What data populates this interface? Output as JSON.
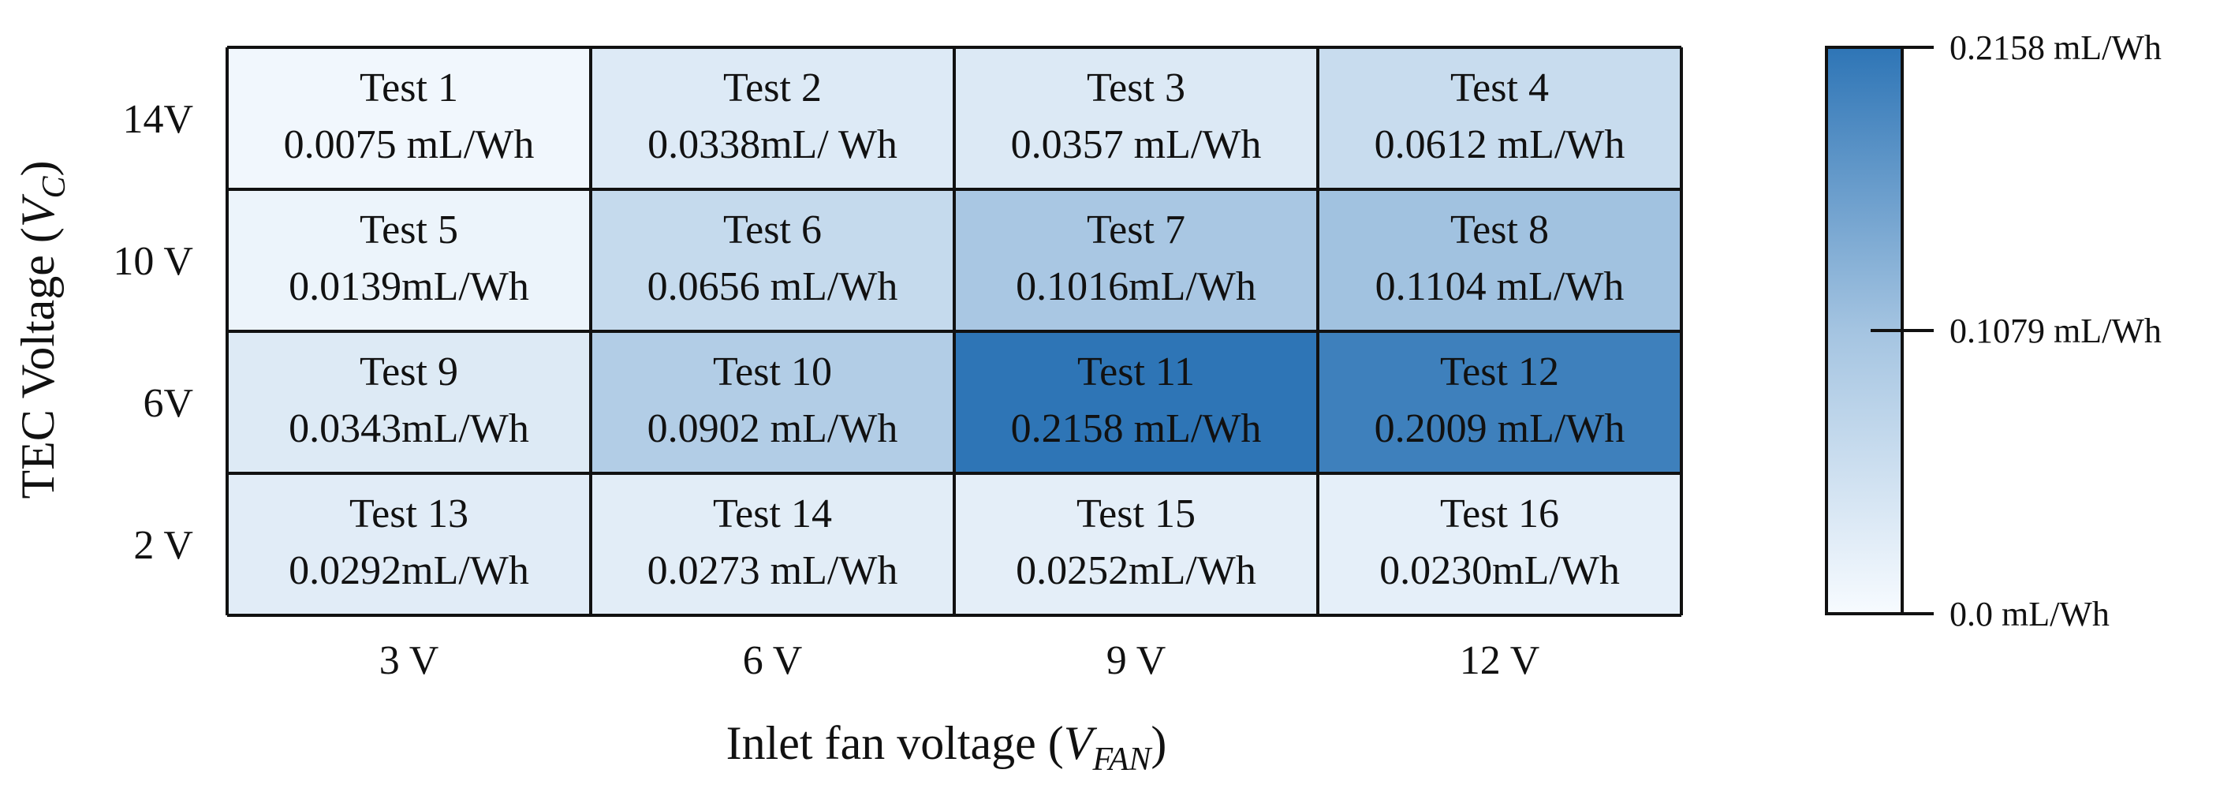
{
  "chart_data": {
    "type": "heatmap",
    "title": "",
    "xlabel": {
      "text": "Inlet fan voltage (",
      "var": "V",
      "sub": "FAN",
      "close": ")"
    },
    "ylabel": {
      "text": "TEC Voltage (",
      "var": "V",
      "sub": "C",
      "close": ")"
    },
    "x_categories": [
      "3 V",
      "6 V",
      "9 V",
      "12 V"
    ],
    "y_categories": [
      "14V",
      "10 V",
      "6V",
      "2 V"
    ],
    "cells": [
      [
        {
          "test": "Test 1",
          "label": "0.0075 mL/Wh",
          "value": 0.0075
        },
        {
          "test": "Test 2",
          "label": "0.0338mL/ Wh",
          "value": 0.0338
        },
        {
          "test": "Test 3",
          "label": "0.0357 mL/Wh",
          "value": 0.0357
        },
        {
          "test": "Test 4",
          "label": "0.0612 mL/Wh",
          "value": 0.0612
        }
      ],
      [
        {
          "test": "Test 5",
          "label": "0.0139mL/Wh",
          "value": 0.0139
        },
        {
          "test": "Test 6",
          "label": "0.0656 mL/Wh",
          "value": 0.0656
        },
        {
          "test": "Test 7",
          "label": "0.1016mL/Wh",
          "value": 0.1016
        },
        {
          "test": "Test 8",
          "label": "0.1104 mL/Wh",
          "value": 0.1104
        }
      ],
      [
        {
          "test": "Test 9",
          "label": "0.0343mL/Wh",
          "value": 0.0343
        },
        {
          "test": "Test 10",
          "label": "0.0902 mL/Wh",
          "value": 0.0902
        },
        {
          "test": "Test 11",
          "label": "0.2158 mL/Wh",
          "value": 0.2158
        },
        {
          "test": "Test 12",
          "label": "0.2009 mL/Wh",
          "value": 0.2009
        }
      ],
      [
        {
          "test": "Test 13",
          "label": "0.0292mL/Wh",
          "value": 0.0292
        },
        {
          "test": "Test 14",
          "label": "0.0273 mL/Wh",
          "value": 0.0273
        },
        {
          "test": "Test 15",
          "label": "0.0252mL/Wh",
          "value": 0.0252
        },
        {
          "test": "Test 16",
          "label": "0.0230mL/Wh",
          "value": 0.023
        }
      ]
    ],
    "colorbar": {
      "min": 0.0,
      "max": 0.2158,
      "ticks": [
        {
          "value": 0.2158,
          "label": "0.2158 mL/Wh"
        },
        {
          "value": 0.1079,
          "label": "0.1079 mL/Wh"
        },
        {
          "value": 0.0,
          "label": "0.0 mL/Wh"
        }
      ],
      "color_low": "#f7fbff",
      "color_mid": "#a4c4e1",
      "color_high": "#2e75b6"
    },
    "grid_color": "#111111"
  }
}
